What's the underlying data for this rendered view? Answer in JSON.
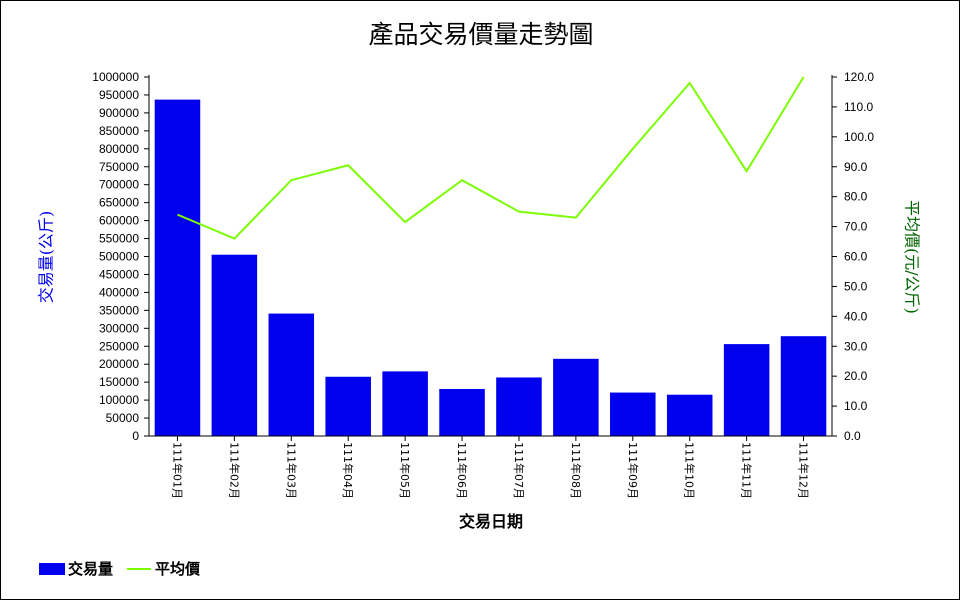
{
  "chart_data": {
    "type": "bar",
    "title": "產品交易價量走勢圖",
    "xlabel": "交易日期",
    "ylabel": "交易量(公斤)",
    "y2label": "平均價(元/公斤)",
    "categories": [
      "111年01月",
      "111年02月",
      "111年03月",
      "111年04月",
      "111年05月",
      "111年06月",
      "111年07月",
      "111年08月",
      "111年09月",
      "111年10月",
      "111年11月",
      "111年12月"
    ],
    "ylim": [
      0,
      1000000
    ],
    "y_ticks": [
      "0",
      "50000",
      "100000",
      "150000",
      "200000",
      "250000",
      "300000",
      "350000",
      "400000",
      "450000",
      "500000",
      "550000",
      "600000",
      "650000",
      "700000",
      "750000",
      "800000",
      "850000",
      "900000",
      "950000",
      "1000000"
    ],
    "y2lim": [
      0,
      120
    ],
    "y2_ticks": [
      "0.0",
      "10.0",
      "20.0",
      "30.0",
      "40.0",
      "50.0",
      "60.0",
      "70.0",
      "80.0",
      "90.0",
      "100.0",
      "110.0",
      "120.0"
    ],
    "series": [
      {
        "name": "交易量",
        "type": "bar",
        "axis": "left",
        "color": "#0000ee",
        "values": [
          937000,
          505000,
          341000,
          165000,
          180000,
          131000,
          163000,
          215000,
          121000,
          115000,
          256000,
          278000
        ]
      },
      {
        "name": "平均價",
        "type": "line",
        "axis": "right",
        "color": "#7cfc00",
        "values": [
          74.0,
          66.0,
          85.5,
          90.5,
          71.5,
          85.5,
          75.0,
          73.0,
          96.0,
          118.0,
          88.5,
          120.0
        ]
      }
    ],
    "legend_position": "bottom-left",
    "grid": false
  }
}
